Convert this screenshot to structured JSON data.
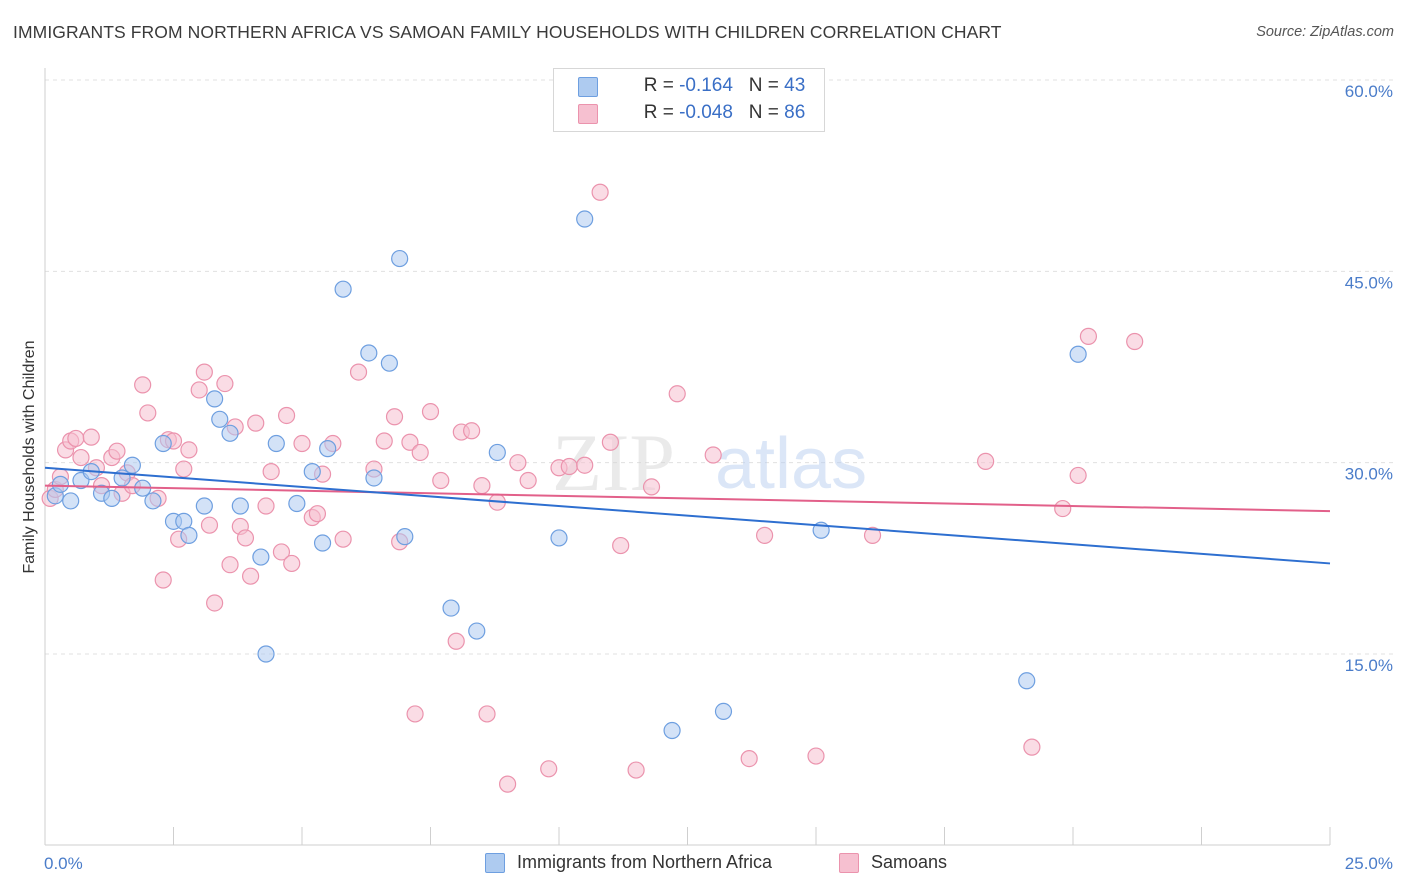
{
  "title": "IMMIGRANTS FROM NORTHERN AFRICA VS SAMOAN FAMILY HOUSEHOLDS WITH CHILDREN CORRELATION CHART",
  "source": "Source: ZipAtlas.com",
  "watermark": {
    "zip": "ZIP",
    "atlas": "atlas"
  },
  "legend": {
    "rows": [
      {
        "r_label": "R = ",
        "r_value": "-0.164",
        "n_label": "N = ",
        "n_value": "43"
      },
      {
        "r_label": "R = ",
        "r_value": "-0.048",
        "n_label": "N = ",
        "n_value": "86"
      }
    ]
  },
  "colors": {
    "blue_fill": "#aecbf0",
    "blue_stroke": "#6e9fe0",
    "blue_line": "#2e6fd0",
    "pink_fill": "#f6c0d0",
    "pink_stroke": "#eb93ad",
    "pink_line": "#e2608a",
    "tick_text": "#4a7cc9",
    "grid": "#e2e2e2"
  },
  "chart_data": {
    "type": "scatter",
    "title": "IMMIGRANTS FROM NORTHERN AFRICA VS SAMOAN FAMILY HOUSEHOLDS WITH CHILDREN CORRELATION CHART",
    "xlabel": "",
    "ylabel": "Family Households with Children",
    "xlim": [
      0,
      25
    ],
    "ylim": [
      0,
      60
    ],
    "x_tick_labels": [
      "0.0%",
      "25.0%"
    ],
    "y_ticks": [
      15,
      30,
      45,
      60
    ],
    "y_tick_labels": [
      "15.0%",
      "30.0%",
      "45.0%",
      "60.0%"
    ],
    "grid": "horizontal dashed",
    "legend_position": "top-center",
    "series": [
      {
        "name": "Immigrants from Northern Africa",
        "color": "#6e9fe0",
        "trend": {
          "x": [
            0,
            25
          ],
          "y": [
            29.6,
            22.1
          ]
        },
        "points": [
          [
            0.2,
            27.4
          ],
          [
            0.3,
            28.3
          ],
          [
            0.5,
            27.0
          ],
          [
            0.7,
            28.6
          ],
          [
            0.9,
            29.3
          ],
          [
            1.1,
            27.6
          ],
          [
            1.3,
            27.2
          ],
          [
            1.5,
            28.8
          ],
          [
            1.7,
            29.8
          ],
          [
            1.9,
            28.0
          ],
          [
            2.1,
            27.0
          ],
          [
            2.3,
            31.5
          ],
          [
            2.5,
            25.4
          ],
          [
            2.7,
            25.4
          ],
          [
            2.8,
            24.3
          ],
          [
            3.1,
            26.6
          ],
          [
            3.3,
            35.0
          ],
          [
            3.4,
            33.4
          ],
          [
            3.6,
            32.3
          ],
          [
            3.8,
            26.6
          ],
          [
            4.2,
            22.6
          ],
          [
            4.3,
            15.0
          ],
          [
            4.5,
            31.5
          ],
          [
            4.9,
            26.8
          ],
          [
            5.2,
            29.3
          ],
          [
            5.4,
            23.7
          ],
          [
            5.5,
            31.1
          ],
          [
            5.8,
            43.6
          ],
          [
            6.3,
            38.6
          ],
          [
            6.4,
            28.8
          ],
          [
            6.7,
            37.8
          ],
          [
            6.9,
            46.0
          ],
          [
            7.0,
            24.2
          ],
          [
            7.9,
            18.6
          ],
          [
            8.4,
            16.8
          ],
          [
            8.8,
            30.8
          ],
          [
            10.0,
            24.1
          ],
          [
            10.5,
            49.1
          ],
          [
            12.2,
            9.0
          ],
          [
            13.2,
            10.5
          ],
          [
            15.1,
            24.7
          ],
          [
            19.1,
            12.9
          ],
          [
            20.1,
            38.5
          ]
        ]
      },
      {
        "name": "Samoans",
        "color": "#eb93ad",
        "trend": {
          "x": [
            0,
            25
          ],
          "y": [
            28.2,
            26.2
          ]
        },
        "points": [
          [
            0.1,
            27.2
          ],
          [
            0.2,
            27.9
          ],
          [
            0.3,
            28.9
          ],
          [
            0.4,
            31.0
          ],
          [
            0.5,
            31.7
          ],
          [
            0.6,
            31.9
          ],
          [
            0.7,
            30.4
          ],
          [
            0.9,
            32.0
          ],
          [
            1.0,
            29.6
          ],
          [
            1.1,
            28.2
          ],
          [
            1.3,
            30.4
          ],
          [
            1.4,
            30.9
          ],
          [
            1.5,
            27.6
          ],
          [
            1.6,
            29.2
          ],
          [
            1.7,
            28.2
          ],
          [
            1.9,
            36.1
          ],
          [
            2.0,
            33.9
          ],
          [
            2.2,
            27.2
          ],
          [
            2.3,
            20.8
          ],
          [
            2.4,
            31.8
          ],
          [
            2.5,
            31.7
          ],
          [
            2.6,
            24.0
          ],
          [
            2.7,
            29.5
          ],
          [
            2.8,
            31.0
          ],
          [
            3.0,
            35.7
          ],
          [
            3.1,
            37.1
          ],
          [
            3.2,
            25.1
          ],
          [
            3.3,
            19.0
          ],
          [
            3.5,
            36.2
          ],
          [
            3.6,
            22.0
          ],
          [
            3.7,
            32.8
          ],
          [
            3.8,
            25.0
          ],
          [
            3.9,
            24.1
          ],
          [
            4.0,
            21.1
          ],
          [
            4.1,
            33.1
          ],
          [
            4.3,
            26.6
          ],
          [
            4.4,
            29.3
          ],
          [
            4.6,
            23.0
          ],
          [
            4.7,
            33.7
          ],
          [
            4.8,
            22.1
          ],
          [
            5.0,
            31.5
          ],
          [
            5.2,
            25.7
          ],
          [
            5.3,
            26.0
          ],
          [
            5.4,
            29.1
          ],
          [
            5.6,
            31.5
          ],
          [
            5.8,
            24.0
          ],
          [
            6.1,
            37.1
          ],
          [
            6.4,
            29.5
          ],
          [
            6.6,
            31.7
          ],
          [
            6.8,
            33.6
          ],
          [
            6.9,
            23.8
          ],
          [
            7.1,
            31.6
          ],
          [
            7.2,
            10.3
          ],
          [
            7.3,
            30.8
          ],
          [
            7.5,
            34.0
          ],
          [
            7.7,
            28.6
          ],
          [
            8.0,
            16.0
          ],
          [
            8.1,
            32.4
          ],
          [
            8.3,
            32.5
          ],
          [
            8.5,
            28.2
          ],
          [
            8.6,
            10.3
          ],
          [
            8.8,
            26.9
          ],
          [
            9.0,
            4.8
          ],
          [
            9.2,
            30.0
          ],
          [
            9.4,
            28.6
          ],
          [
            9.8,
            6.0
          ],
          [
            10.0,
            29.6
          ],
          [
            10.2,
            29.7
          ],
          [
            10.5,
            29.8
          ],
          [
            10.8,
            51.2
          ],
          [
            11.0,
            31.6
          ],
          [
            11.2,
            23.5
          ],
          [
            11.5,
            5.9
          ],
          [
            11.8,
            28.1
          ],
          [
            12.3,
            35.4
          ],
          [
            13.0,
            30.6
          ],
          [
            13.7,
            6.8
          ],
          [
            14.0,
            24.3
          ],
          [
            15.0,
            7.0
          ],
          [
            16.1,
            24.3
          ],
          [
            18.3,
            30.1
          ],
          [
            19.2,
            7.7
          ],
          [
            19.8,
            26.4
          ],
          [
            20.1,
            29.0
          ],
          [
            20.3,
            39.9
          ],
          [
            21.2,
            39.5
          ]
        ]
      }
    ]
  },
  "bottom_legend": [
    "Immigrants from Northern Africa",
    "Samoans"
  ]
}
